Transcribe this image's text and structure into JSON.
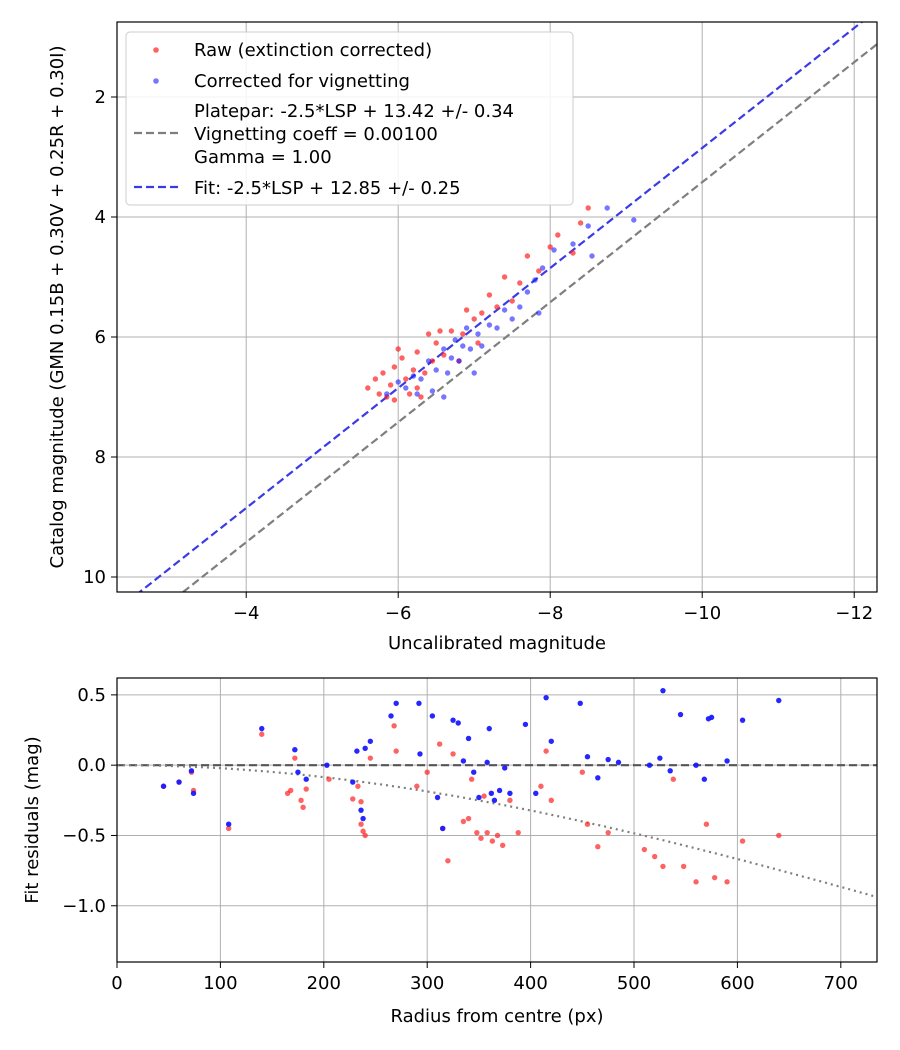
{
  "chart_data": [
    {
      "type": "scatter",
      "xlabel": "Uncalibrated magnitude",
      "ylabel": "Catalog magnitude (GMN 0.15B + 0.30V + 0.25R + 0.30I)",
      "xlim": [
        -2.3,
        -12.3
      ],
      "ylim": [
        10.25,
        0.75
      ],
      "x_ticks": [
        -4,
        -6,
        -8,
        -10,
        -12
      ],
      "x_tick_labels": [
        "−4",
        "−6",
        "−8",
        "−10",
        "−12"
      ],
      "y_ticks": [
        2,
        4,
        6,
        8,
        10
      ],
      "y_tick_labels": [
        "2",
        "4",
        "6",
        "8",
        "10"
      ],
      "grid": true,
      "legend_position": "top-left",
      "legend": {
        "raw": "Raw (extinction corrected)",
        "corrected": "Corrected for vignetting",
        "platepar_line1": "Platepar: -2.5*LSP + 13.42 +/- 0.34",
        "platepar_line2": "Vignetting coeff = 0.00100",
        "platepar_line3": "Gamma = 1.00",
        "fit": "Fit: -2.5*LSP + 12.85 +/- 0.25"
      },
      "lines": [
        {
          "name": "platepar",
          "intercept": 13.42,
          "slope": 1,
          "color": "#7f7f7f",
          "style": "dashed"
        },
        {
          "name": "fit",
          "intercept": 12.85,
          "slope": 1,
          "color": "#3b3be6",
          "style": "dashed"
        }
      ],
      "series": [
        {
          "name": "Raw (extinction corrected)",
          "color": "#ff2020",
          "points": [
            [
              -5.6,
              6.85
            ],
            [
              -5.7,
              6.7
            ],
            [
              -5.75,
              6.95
            ],
            [
              -5.8,
              6.6
            ],
            [
              -5.85,
              7.0
            ],
            [
              -5.9,
              6.8
            ],
            [
              -5.95,
              6.5
            ],
            [
              -6.0,
              6.2
            ],
            [
              -6.05,
              6.35
            ],
            [
              -6.1,
              6.7
            ],
            [
              -6.15,
              6.95
            ],
            [
              -6.2,
              6.55
            ],
            [
              -6.25,
              6.25
            ],
            [
              -6.3,
              7.0
            ],
            [
              -6.35,
              6.6
            ],
            [
              -6.4,
              5.95
            ],
            [
              -6.45,
              6.4
            ],
            [
              -6.5,
              6.1
            ],
            [
              -6.55,
              5.9
            ],
            [
              -6.6,
              6.3
            ],
            [
              -6.7,
              5.9
            ],
            [
              -6.8,
              6.4
            ],
            [
              -6.85,
              5.95
            ],
            [
              -6.9,
              5.55
            ],
            [
              -7.0,
              5.7
            ],
            [
              -7.05,
              6.1
            ],
            [
              -7.1,
              5.6
            ],
            [
              -7.2,
              5.3
            ],
            [
              -7.3,
              5.5
            ],
            [
              -7.4,
              5.0
            ],
            [
              -7.5,
              5.4
            ],
            [
              -7.6,
              5.1
            ],
            [
              -7.7,
              4.65
            ],
            [
              -7.85,
              4.9
            ],
            [
              -8.0,
              4.5
            ],
            [
              -8.1,
              4.3
            ],
            [
              -8.3,
              4.6
            ],
            [
              -8.4,
              4.1
            ],
            [
              -8.5,
              3.85
            ],
            [
              -6.25,
              6.85
            ],
            [
              -5.95,
              7.05
            ]
          ]
        },
        {
          "name": "Corrected for vignetting",
          "color": "#1a1aff",
          "points": [
            [
              -5.85,
              6.95
            ],
            [
              -6.0,
              6.75
            ],
            [
              -6.1,
              6.85
            ],
            [
              -6.2,
              6.65
            ],
            [
              -6.3,
              6.7
            ],
            [
              -6.4,
              6.4
            ],
            [
              -6.45,
              6.9
            ],
            [
              -6.5,
              6.55
            ],
            [
              -6.6,
              6.2
            ],
            [
              -6.65,
              6.6
            ],
            [
              -6.7,
              6.35
            ],
            [
              -6.75,
              6.05
            ],
            [
              -6.8,
              6.4
            ],
            [
              -6.85,
              6.15
            ],
            [
              -6.9,
              5.85
            ],
            [
              -6.95,
              6.2
            ],
            [
              -7.0,
              6.6
            ],
            [
              -7.05,
              5.95
            ],
            [
              -7.1,
              6.15
            ],
            [
              -7.2,
              5.8
            ],
            [
              -7.3,
              5.85
            ],
            [
              -7.4,
              5.55
            ],
            [
              -7.5,
              5.7
            ],
            [
              -7.6,
              5.5
            ],
            [
              -7.7,
              5.25
            ],
            [
              -7.8,
              5.05
            ],
            [
              -7.9,
              4.85
            ],
            [
              -8.05,
              4.55
            ],
            [
              -8.3,
              4.45
            ],
            [
              -8.5,
              4.15
            ],
            [
              -8.75,
              3.85
            ],
            [
              -9.1,
              4.05
            ],
            [
              -6.6,
              7.0
            ],
            [
              -6.25,
              6.95
            ],
            [
              -8.55,
              4.65
            ],
            [
              -7.85,
              5.6
            ]
          ]
        }
      ]
    },
    {
      "type": "scatter",
      "xlabel": "Radius from centre (px)",
      "ylabel": "Fit residuals (mag)",
      "xlim": [
        0,
        735
      ],
      "ylim": [
        -1.4,
        0.62
      ],
      "x_ticks": [
        0,
        100,
        200,
        300,
        400,
        500,
        600,
        700
      ],
      "x_tick_labels": [
        "0",
        "100",
        "200",
        "300",
        "400",
        "500",
        "600",
        "700"
      ],
      "y_ticks": [
        0.5,
        0.0,
        -0.5,
        -1.0
      ],
      "y_tick_labels": [
        "0.5",
        "0.0",
        "−0.5",
        "−1.0"
      ],
      "grid": true,
      "zero_line": {
        "y": 0,
        "color": "#555555",
        "style": "dashed"
      },
      "vignetting_curve": {
        "coeff": 0.001,
        "color": "#7f7f7f",
        "style": "dotted"
      },
      "series": [
        {
          "name": "Raw",
          "color": "#ff2020",
          "points": [
            [
              45,
              -0.15
            ],
            [
              60,
              -0.12
            ],
            [
              72,
              -0.05
            ],
            [
              74,
              -0.18
            ],
            [
              108,
              -0.45
            ],
            [
              140,
              0.22
            ],
            [
              165,
              -0.2
            ],
            [
              168,
              -0.18
            ],
            [
              172,
              0.05
            ],
            [
              178,
              -0.25
            ],
            [
              180,
              -0.3
            ],
            [
              183,
              -0.17
            ],
            [
              205,
              -0.1
            ],
            [
              228,
              -0.24
            ],
            [
              233,
              -0.15
            ],
            [
              236,
              -0.26
            ],
            [
              236,
              -0.42
            ],
            [
              238,
              -0.47
            ],
            [
              240,
              -0.5
            ],
            [
              245,
              0.05
            ],
            [
              268,
              0.28
            ],
            [
              270,
              0.1
            ],
            [
              290,
              -0.15
            ],
            [
              300,
              -0.05
            ],
            [
              312,
              0.15
            ],
            [
              315,
              -0.45
            ],
            [
              320,
              -0.68
            ],
            [
              325,
              0.08
            ],
            [
              335,
              -0.4
            ],
            [
              340,
              -0.38
            ],
            [
              343,
              -0.1
            ],
            [
              348,
              -0.48
            ],
            [
              352,
              -0.52
            ],
            [
              355,
              -0.22
            ],
            [
              358,
              -0.48
            ],
            [
              363,
              -0.54
            ],
            [
              368,
              -0.5
            ],
            [
              373,
              -0.57
            ],
            [
              380,
              -0.25
            ],
            [
              388,
              -0.48
            ],
            [
              410,
              -0.15
            ],
            [
              415,
              0.1
            ],
            [
              420,
              -0.25
            ],
            [
              450,
              -0.05
            ],
            [
              455,
              -0.42
            ],
            [
              465,
              -0.58
            ],
            [
              475,
              -0.48
            ],
            [
              510,
              -0.6
            ],
            [
              520,
              -0.65
            ],
            [
              528,
              -0.72
            ],
            [
              538,
              -0.1
            ],
            [
              548,
              -0.72
            ],
            [
              560,
              -0.83
            ],
            [
              570,
              -0.42
            ],
            [
              578,
              -0.8
            ],
            [
              590,
              -0.83
            ],
            [
              605,
              -0.54
            ],
            [
              640,
              -0.5
            ]
          ]
        },
        {
          "name": "Corrected",
          "color": "#1a1aff",
          "points": [
            [
              45,
              -0.15
            ],
            [
              60,
              -0.12
            ],
            [
              72,
              -0.04
            ],
            [
              74,
              -0.2
            ],
            [
              108,
              -0.42
            ],
            [
              140,
              0.26
            ],
            [
              172,
              0.11
            ],
            [
              175,
              -0.05
            ],
            [
              183,
              -0.1
            ],
            [
              203,
              0.0
            ],
            [
              228,
              -0.12
            ],
            [
              232,
              0.1
            ],
            [
              236,
              -0.32
            ],
            [
              238,
              -0.38
            ],
            [
              240,
              0.12
            ],
            [
              245,
              0.17
            ],
            [
              265,
              0.35
            ],
            [
              270,
              0.44
            ],
            [
              292,
              0.44
            ],
            [
              293,
              0.08
            ],
            [
              305,
              0.35
            ],
            [
              310,
              -0.23
            ],
            [
              315,
              -0.45
            ],
            [
              325,
              0.32
            ],
            [
              330,
              0.3
            ],
            [
              335,
              0.03
            ],
            [
              340,
              0.19
            ],
            [
              345,
              -0.05
            ],
            [
              350,
              -0.23
            ],
            [
              358,
              0.02
            ],
            [
              360,
              0.26
            ],
            [
              362,
              -0.2
            ],
            [
              365,
              -0.25
            ],
            [
              370,
              -0.18
            ],
            [
              375,
              -0.02
            ],
            [
              380,
              -0.2
            ],
            [
              395,
              0.29
            ],
            [
              405,
              -0.2
            ],
            [
              415,
              0.48
            ],
            [
              420,
              0.17
            ],
            [
              448,
              0.44
            ],
            [
              455,
              0.06
            ],
            [
              465,
              -0.09
            ],
            [
              475,
              0.04
            ],
            [
              485,
              0.02
            ],
            [
              515,
              0.0
            ],
            [
              525,
              0.05
            ],
            [
              528,
              0.53
            ],
            [
              535,
              -0.04
            ],
            [
              545,
              0.36
            ],
            [
              560,
              0.0
            ],
            [
              568,
              -0.1
            ],
            [
              572,
              0.33
            ],
            [
              575,
              0.34
            ],
            [
              590,
              0.03
            ],
            [
              605,
              0.32
            ],
            [
              640,
              0.46
            ]
          ]
        }
      ]
    }
  ]
}
